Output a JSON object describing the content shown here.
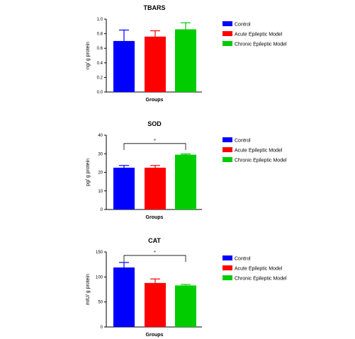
{
  "chart_data": [
    {
      "type": "bar",
      "title": "TBARS",
      "xlabel": "Groups",
      "ylabel": "ng/ g protein",
      "ylim": [
        0,
        1.0
      ],
      "yticks": [
        "0.0",
        "0.2",
        "0.4",
        "0.6",
        "0.8",
        "1.0"
      ],
      "categories": [
        "Control",
        "Acute Epileptic Model",
        "Chronic Epileptic Model"
      ],
      "values": [
        0.7,
        0.76,
        0.86
      ],
      "errors": [
        0.15,
        0.08,
        0.09
      ],
      "colors": [
        "#0000ff",
        "#ff0000",
        "#00cc00"
      ],
      "significance": null
    },
    {
      "type": "bar",
      "title": "SOD",
      "xlabel": "Groups",
      "ylabel": "pg/ g protein",
      "ylim": [
        0,
        40
      ],
      "yticks": [
        "0",
        "10",
        "20",
        "30",
        "40"
      ],
      "categories": [
        "Control",
        "Acute Epileptic Model",
        "Chronic Epileptic Model"
      ],
      "values": [
        22.5,
        22.5,
        29.5
      ],
      "errors": [
        1.2,
        1.2,
        0.4
      ],
      "colors": [
        "#0000ff",
        "#ff0000",
        "#00cc00"
      ],
      "significance": {
        "from": 0,
        "to": 2,
        "y": 35.5,
        "label": "*"
      }
    },
    {
      "type": "bar",
      "title": "CAT",
      "xlabel": "Groups",
      "ylabel": "mIU/ g protein",
      "ylim": [
        0,
        150
      ],
      "yticks": [
        "0",
        "50",
        "100",
        "150"
      ],
      "categories": [
        "Control",
        "Acute Epileptic Model",
        "Chronic Epileptic Model"
      ],
      "values": [
        119,
        88,
        83
      ],
      "errors": [
        10,
        8,
        2
      ],
      "colors": [
        "#0000ff",
        "#ff0000",
        "#00cc00"
      ],
      "significance": {
        "from": 0,
        "to": 2,
        "y": 143,
        "label": "*"
      }
    }
  ]
}
